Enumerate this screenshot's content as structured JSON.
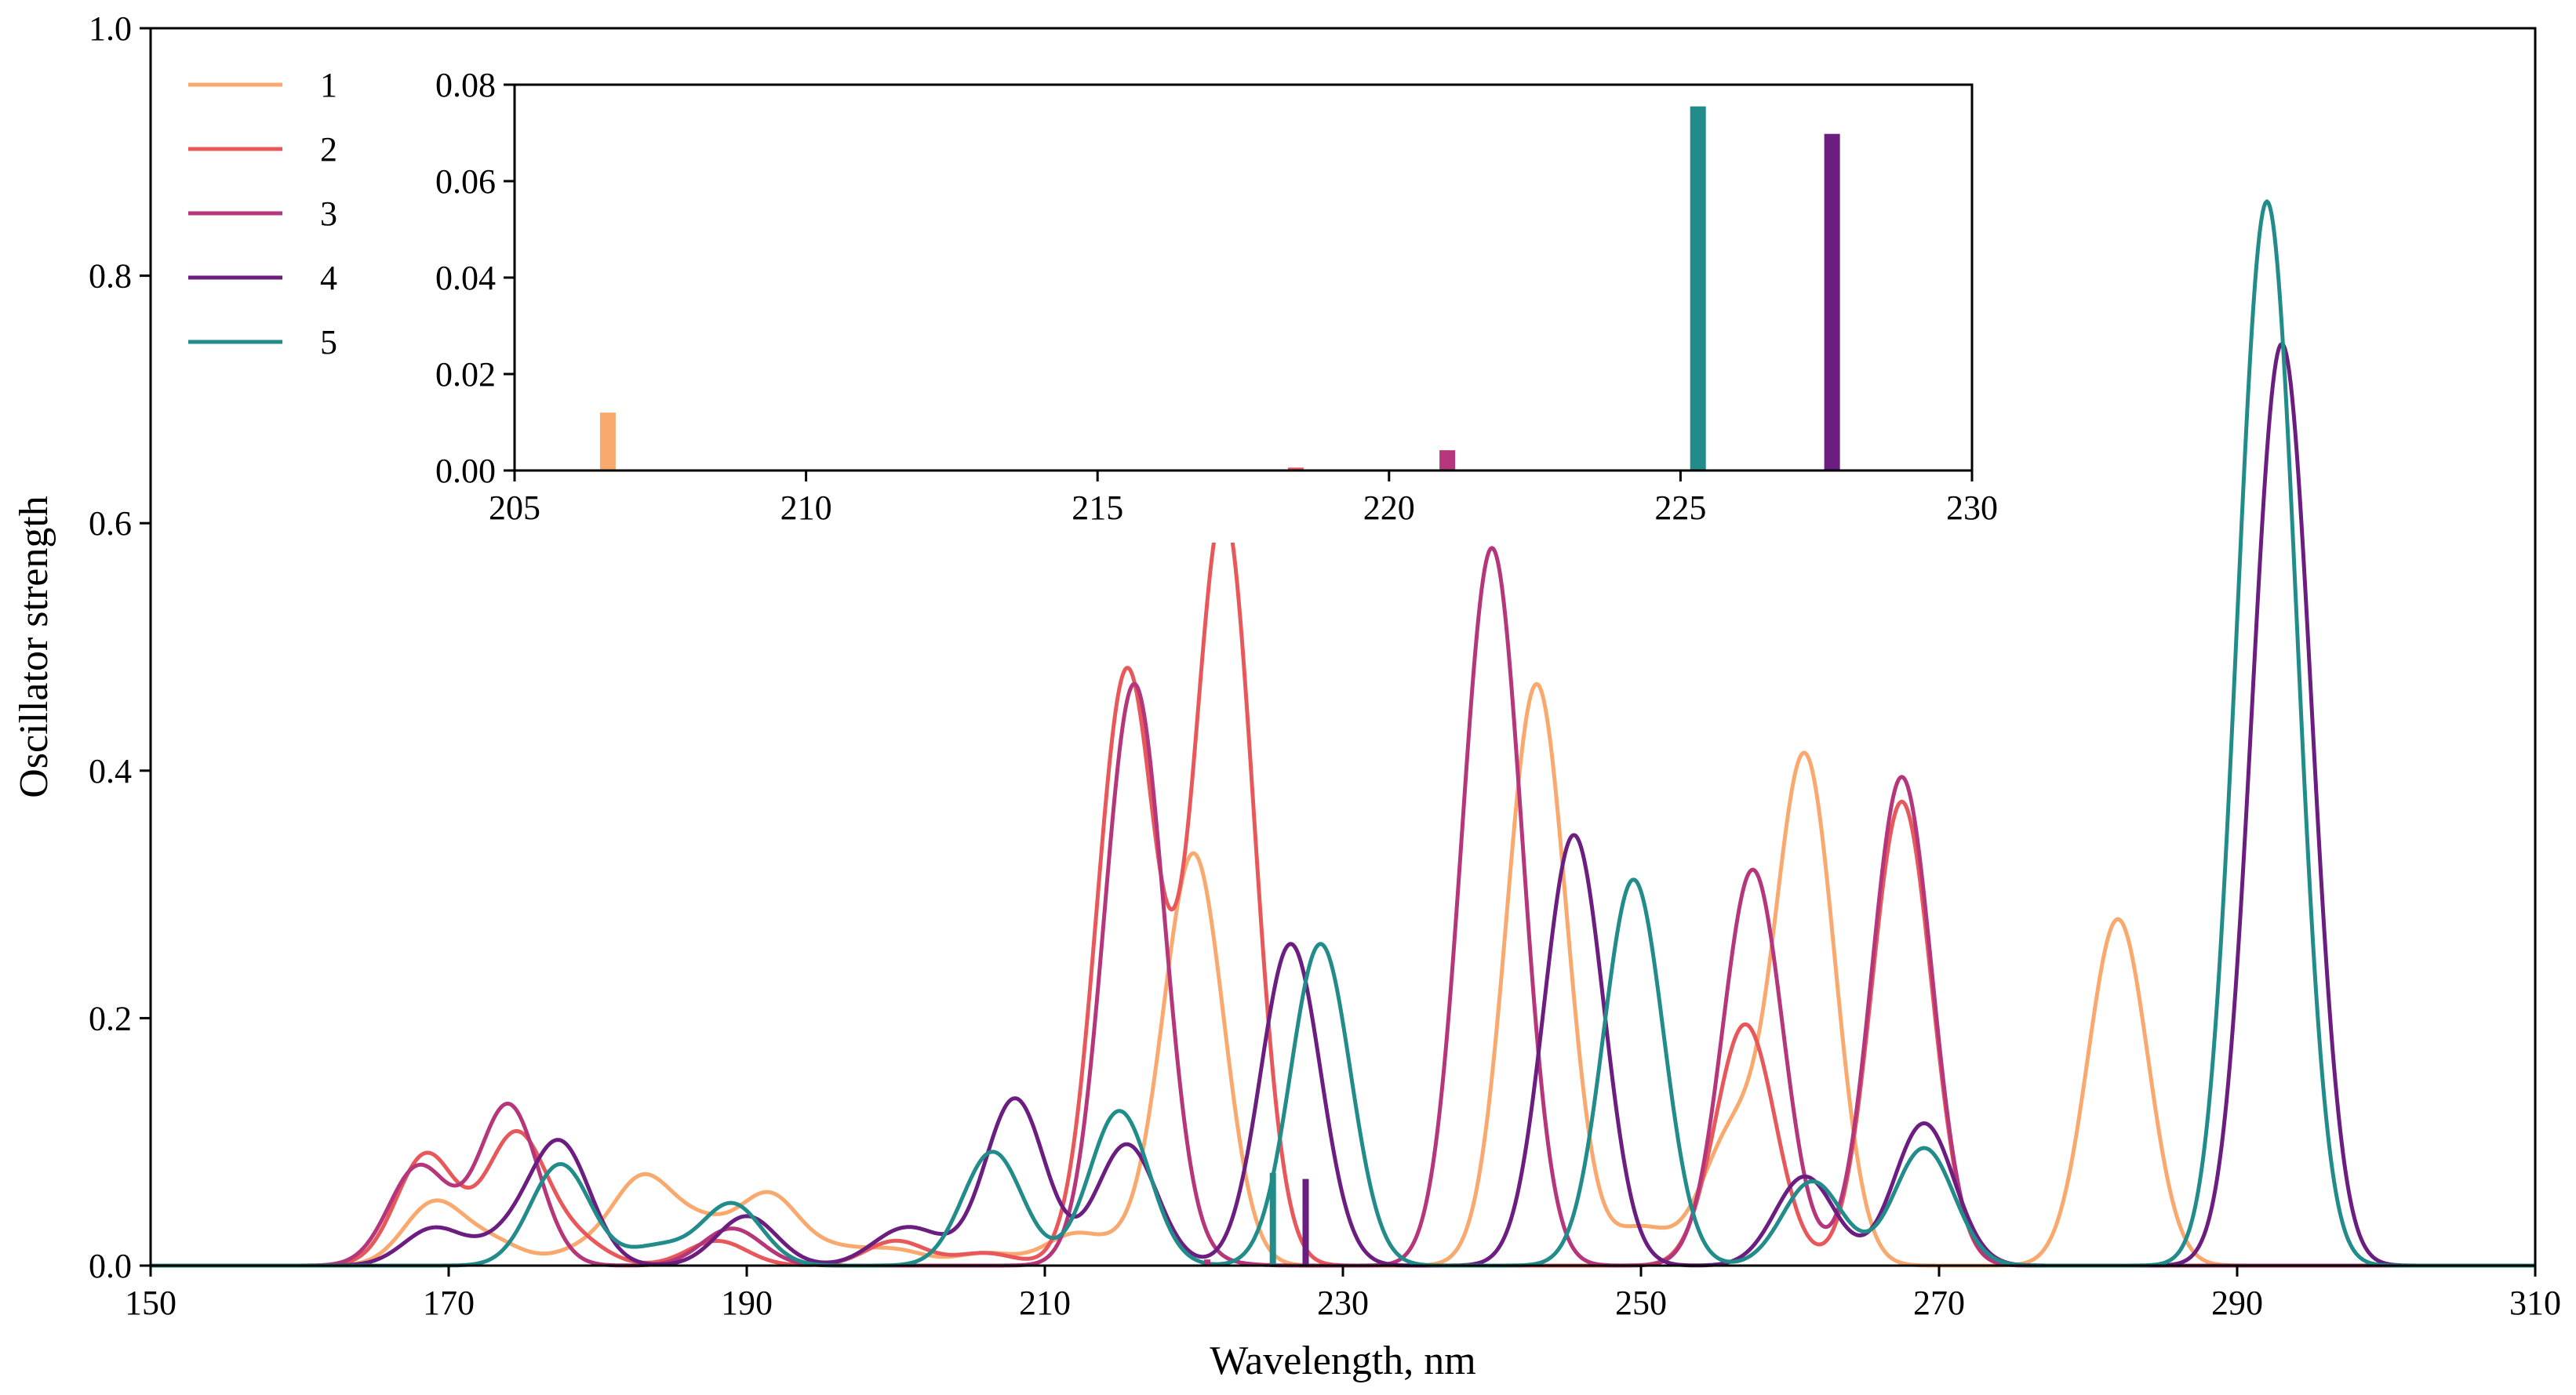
{
  "chart_data": [
    {
      "type": "line",
      "xlabel": "Wavelength, nm",
      "ylabel": "Oscillator strength",
      "xlim": [
        150,
        310
      ],
      "ylim": [
        0,
        1.0
      ],
      "xticks": [
        "150",
        "170",
        "190",
        "210",
        "230",
        "250",
        "270",
        "290",
        "310"
      ],
      "yticks": [
        "0.0",
        "0.2",
        "0.4",
        "0.6",
        "0.8",
        "1.0"
      ],
      "grid": false,
      "legend_position": "top-left",
      "peak_width_sigma_nm": 2.0,
      "series": [
        {
          "name": "1",
          "color": "#f9a86e",
          "peaks": [
            [
              169,
              0.05
            ],
            [
              173,
              0.018
            ],
            [
              179,
              0.012
            ],
            [
              183,
              0.068
            ],
            [
              187,
              0.03
            ],
            [
              191.5,
              0.056
            ],
            [
              196,
              0.012
            ],
            [
              200,
              0.012
            ],
            [
              206,
              0.01
            ],
            [
              212,
              0.025
            ],
            [
              216.5,
              0.015
            ],
            [
              220,
              0.33
            ],
            [
              243,
              0.47
            ],
            [
              250,
              0.03
            ],
            [
              256,
              0.1
            ],
            [
              261,
              0.41
            ],
            [
              282,
              0.28
            ]
          ]
        },
        {
          "name": "2",
          "color": "#e8585a",
          "peaks": [
            [
              168.5,
              0.09
            ],
            [
              174.5,
              0.105
            ],
            [
              178.5,
              0.02
            ],
            [
              188,
              0.02
            ],
            [
              200,
              0.02
            ],
            [
              206,
              0.01
            ],
            [
              215.5,
              0.48
            ],
            [
              222,
              0.61
            ],
            [
              257,
              0.195
            ],
            [
              267.5,
              0.375
            ]
          ]
        },
        {
          "name": "3",
          "color": "#b5367a",
          "peaks": [
            [
              168,
              0.08
            ],
            [
              174,
              0.13
            ],
            [
              189,
              0.03
            ],
            [
              216,
              0.47
            ],
            [
              221,
              0.003
            ],
            [
              240,
              0.58
            ],
            [
              257.5,
              0.32
            ],
            [
              267.5,
              0.395
            ]
          ]
        },
        {
          "name": "4",
          "color": "#6b1e80",
          "peaks": [
            [
              169,
              0.03
            ],
            [
              174,
              0.02
            ],
            [
              177.5,
              0.097
            ],
            [
              190,
              0.04
            ],
            [
              200,
              0.02
            ],
            [
              202,
              0.015
            ],
            [
              208,
              0.135
            ],
            [
              215.5,
              0.098
            ],
            [
              226.5,
              0.26
            ],
            [
              245.5,
              0.348
            ],
            [
              261,
              0.072
            ],
            [
              269,
              0.115
            ],
            [
              293,
              0.745
            ]
          ]
        },
        {
          "name": "5",
          "color": "#218c8a",
          "peaks": [
            [
              177.5,
              0.082
            ],
            [
              184,
              0.015
            ],
            [
              189,
              0.05
            ],
            [
              206.5,
              0.092
            ],
            [
              215,
              0.125
            ],
            [
              228.5,
              0.26
            ],
            [
              249.5,
              0.312
            ],
            [
              261.5,
              0.068
            ],
            [
              269,
              0.095
            ],
            [
              292,
              0.86
            ]
          ]
        }
      ],
      "sticks": [
        {
          "series": "5",
          "x": 225.3,
          "y": 0.075
        },
        {
          "series": "4",
          "x": 227.5,
          "y": 0.07
        },
        {
          "series": "3",
          "x": 220.9,
          "y": 0.005
        }
      ]
    },
    {
      "type": "bar",
      "xlim": [
        205,
        230
      ],
      "ylim": [
        0,
        0.08
      ],
      "xticks": [
        "205",
        "210",
        "215",
        "220",
        "225",
        "230"
      ],
      "yticks": [
        "0.00",
        "0.02",
        "0.04",
        "0.06",
        "0.08"
      ],
      "grid": false,
      "bars": [
        {
          "series": "1",
          "x": 206.6,
          "y": 0.012,
          "color": "#f9a86e"
        },
        {
          "series": "2",
          "x": 218.4,
          "y": 0.0006,
          "color": "#e8585a"
        },
        {
          "series": "3",
          "x": 221.0,
          "y": 0.0042,
          "color": "#b5367a"
        },
        {
          "series": "5",
          "x": 225.3,
          "y": 0.0755,
          "color": "#218c8a"
        },
        {
          "series": "4",
          "x": 227.6,
          "y": 0.0698,
          "color": "#6b1e80"
        }
      ]
    }
  ]
}
